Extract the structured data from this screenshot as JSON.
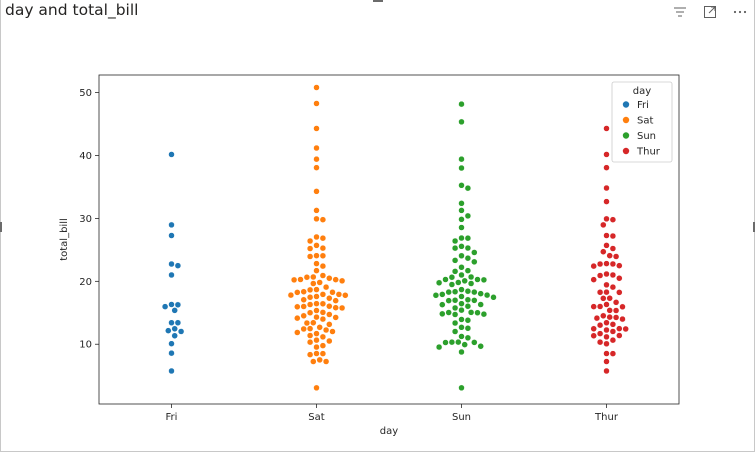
{
  "visual": {
    "title": "day and total_bill",
    "toolbar": [
      {
        "name": "filter-icon",
        "label": "Filter"
      },
      {
        "name": "focus-mode-icon",
        "label": "Focus mode"
      },
      {
        "name": "more-options-icon",
        "label": "More options"
      }
    ]
  },
  "colors": {
    "Fri": "#1f77b4",
    "Sat": "#ff7f0e",
    "Sun": "#2ca02c",
    "Thur": "#d62728"
  },
  "chart_data": {
    "type": "scatter",
    "subtype": "swarm",
    "xlabel": "day",
    "ylabel": "total_bill",
    "categories": [
      "Fri",
      "Sat",
      "Sun",
      "Thur"
    ],
    "ylim": [
      0.5,
      52.8
    ],
    "yticks": [
      10,
      20,
      30,
      40,
      50
    ],
    "grid": false,
    "legend": {
      "title": "day",
      "position": "top-right",
      "entries": [
        "Fri",
        "Sat",
        "Sun",
        "Thur"
      ]
    },
    "series": [
      {
        "name": "Fri",
        "values": [
          28.97,
          22.49,
          5.75,
          16.32,
          22.75,
          40.17,
          27.28,
          12.03,
          21.01,
          12.46,
          11.35,
          15.38,
          12.16,
          13.42,
          8.58,
          15.98,
          13.42,
          16.27,
          10.09
        ]
      },
      {
        "name": "Sat",
        "values": [
          20.65,
          17.92,
          20.29,
          15.77,
          39.42,
          19.82,
          17.81,
          13.37,
          12.69,
          21.7,
          19.65,
          9.55,
          18.35,
          15.06,
          20.69,
          17.78,
          24.06,
          16.31,
          16.93,
          18.69,
          31.27,
          16.04,
          26.41,
          48.27,
          17.59,
          20.08,
          16.45,
          3.07,
          20.23,
          15.01,
          12.02,
          17.07,
          26.86,
          25.28,
          14.73,
          10.51,
          17.92,
          44.3,
          22.42,
          20.92,
          15.36,
          20.49,
          25.21,
          18.24,
          14.31,
          14.0,
          7.25,
          38.07,
          23.95,
          25.71,
          17.31,
          29.93,
          10.65,
          12.43,
          24.08,
          11.69,
          13.42,
          14.26,
          15.95,
          12.48,
          29.8,
          8.52,
          14.52,
          11.38,
          22.82,
          19.08,
          20.27,
          11.17,
          12.26,
          18.26,
          8.51,
          10.33,
          14.15,
          16.0,
          13.16,
          17.47,
          34.3,
          41.19,
          27.05,
          16.43,
          8.35,
          18.64,
          11.87,
          9.78,
          7.51,
          50.81,
          15.81,
          7.25
        ]
      },
      {
        "name": "Sun",
        "values": [
          16.99,
          10.34,
          21.01,
          23.68,
          24.59,
          25.29,
          8.77,
          26.88,
          15.04,
          14.78,
          10.27,
          35.26,
          15.42,
          18.43,
          14.83,
          21.58,
          10.33,
          16.29,
          16.97,
          20.65,
          17.92,
          20.29,
          15.77,
          39.42,
          19.82,
          17.81,
          13.37,
          12.69,
          21.7,
          19.65,
          9.55,
          18.35,
          15.06,
          20.69,
          17.78,
          24.06,
          16.31,
          16.93,
          18.69,
          31.27,
          16.04,
          17.46,
          13.94,
          9.68,
          30.4,
          18.29,
          22.23,
          32.4,
          28.55,
          18.04,
          12.54,
          10.29,
          34.81,
          9.94,
          25.56,
          19.49,
          38.01,
          26.41,
          11.24,
          48.17,
          20.29,
          13.81,
          11.02,
          18.29,
          17.59,
          20.08,
          16.45,
          3.07,
          20.23,
          15.01,
          12.02,
          17.07,
          26.86,
          25.28,
          14.73,
          45.35,
          23.33,
          19.77,
          29.85,
          23.1
        ]
      },
      {
        "name": "Thur",
        "values": [
          27.2,
          22.76,
          17.29,
          19.44,
          16.66,
          10.07,
          32.68,
          15.98,
          34.83,
          13.03,
          18.28,
          24.71,
          21.16,
          28.97,
          22.49,
          5.75,
          16.32,
          22.75,
          40.17,
          27.28,
          12.03,
          21.01,
          12.46,
          11.35,
          15.38,
          44.3,
          22.42,
          20.92,
          15.36,
          20.49,
          25.21,
          18.24,
          14.31,
          14.0,
          7.25,
          38.07,
          23.95,
          25.71,
          17.31,
          29.93,
          10.65,
          12.43,
          24.08,
          11.69,
          13.42,
          14.26,
          15.95,
          12.48,
          29.8,
          8.52,
          14.52,
          11.38,
          22.82,
          19.08,
          20.27,
          11.17,
          12.26,
          18.26,
          8.51,
          10.33,
          14.15,
          16.0,
          13.16
        ]
      }
    ]
  }
}
